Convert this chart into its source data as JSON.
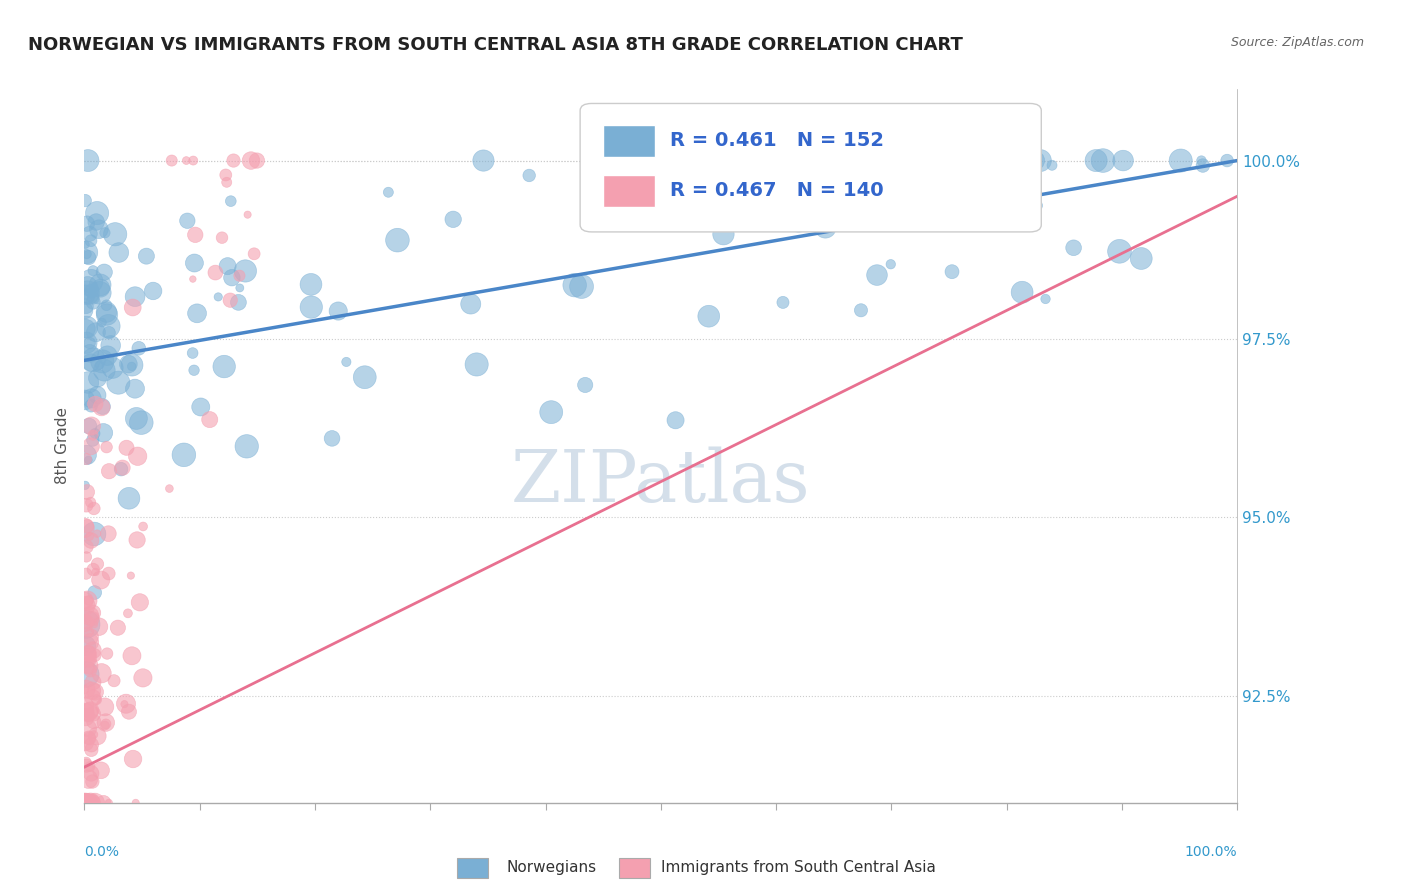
{
  "title": "NORWEGIAN VS IMMIGRANTS FROM SOUTH CENTRAL ASIA 8TH GRADE CORRELATION CHART",
  "source": "Source: ZipAtlas.com",
  "ylabel": "8th Grade",
  "xmin": 0.0,
  "xmax": 100.0,
  "ymin": 91.0,
  "ymax": 101.0,
  "R_blue": 0.461,
  "N_blue": 152,
  "R_pink": 0.467,
  "N_pink": 140,
  "legend_label_blue": "Norwegians",
  "legend_label_pink": "Immigrants from South Central Asia",
  "blue_color": "#7aafd4",
  "pink_color": "#f4a0b0",
  "trendline_blue": "#4a86c8",
  "trendline_pink": "#e87090",
  "watermark": "ZIPatlas",
  "background_color": "#ffffff",
  "title_fontsize": 13,
  "watermark_color": "#d0dce8",
  "yticks": [
    92.5,
    95.0,
    97.5,
    100.0
  ],
  "blue_trend_start_y": 97.2,
  "blue_trend_end_y": 100.0,
  "pink_trend_start_y": 91.5,
  "pink_trend_end_y": 99.5
}
